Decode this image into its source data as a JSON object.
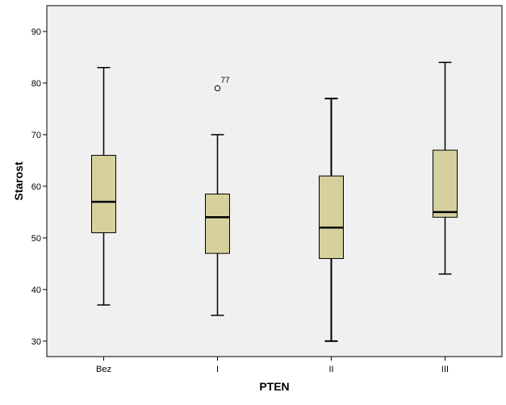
{
  "chart_data": {
    "type": "boxplot",
    "title": "",
    "xlabel": "PTEN",
    "ylabel": "Starost",
    "ylim": [
      27,
      95
    ],
    "yticks": [
      30,
      40,
      50,
      60,
      70,
      80,
      90
    ],
    "ytick_labels": [
      "30",
      "40",
      "50",
      "60",
      "70",
      "80",
      "90"
    ],
    "grid": false,
    "legend": "none",
    "categories": [
      "Bez",
      "I",
      "II",
      "III"
    ],
    "boxes": [
      {
        "category": "Bez",
        "whisker_low": 37,
        "q1": 51,
        "median": 57,
        "q3": 66,
        "whisker_high": 83,
        "outliers": []
      },
      {
        "category": "I",
        "whisker_low": 35,
        "q1": 47,
        "median": 54,
        "q3": 58.5,
        "whisker_high": 70,
        "outliers": [
          {
            "value": 79,
            "label": "77"
          }
        ]
      },
      {
        "category": "II",
        "whisker_low": 30,
        "q1": 46,
        "median": 52,
        "q3": 62,
        "whisker_high": 77,
        "outliers": []
      },
      {
        "category": "III",
        "whisker_low": 43,
        "q1": 54,
        "median": 55,
        "q3": 67,
        "whisker_high": 84,
        "outliers": []
      }
    ],
    "colors": {
      "plot_background": "#f0f0f0",
      "box_fill": "#d6d09c",
      "stroke": "#000000",
      "outlier_fill": "#ffffff"
    }
  }
}
